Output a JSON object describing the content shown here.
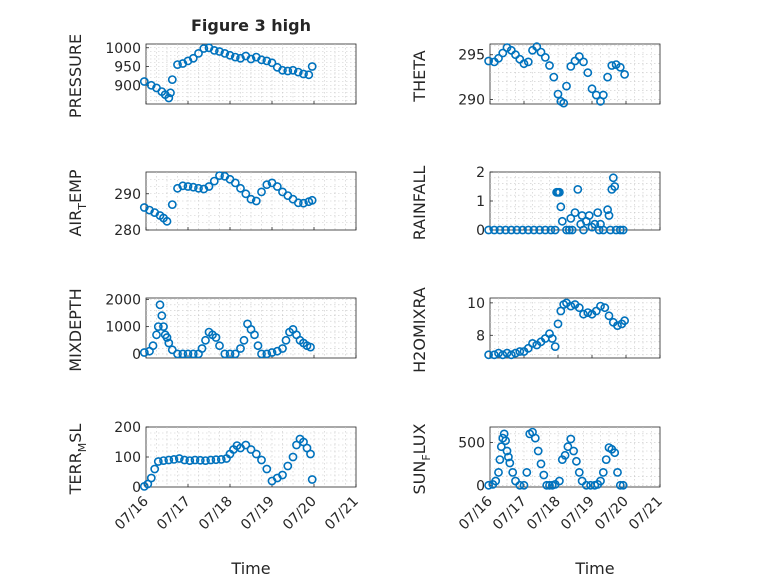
{
  "figure": {
    "title": "Figure 3 high",
    "xlabel": "Time",
    "x_ticks": [
      "07/16",
      "07/17",
      "07/18",
      "07/19",
      "07/20",
      "07/21"
    ]
  },
  "chart_data": [
    {
      "type": "scatter",
      "ylabel": "PRESSURE",
      "grid": true,
      "xlim": [
        "07/16",
        "07/21"
      ],
      "ylim": [
        850,
        1010
      ],
      "yticks": [
        900,
        950,
        1000
      ],
      "x": [
        "07/15 23:00",
        "07/16 03:00",
        "07/16 06:00",
        "07/16 09:00",
        "07/16 11:00",
        "07/16 13:00",
        "07/16 14:00",
        "07/16 15:00",
        "07/16 18:00",
        "07/16 21:00",
        "07/17 00:00",
        "07/17 03:00",
        "07/17 06:00",
        "07/17 09:00",
        "07/17 12:00",
        "07/17 15:00",
        "07/17 18:00",
        "07/17 21:00",
        "07/18 00:00",
        "07/18 03:00",
        "07/18 06:00",
        "07/18 09:00",
        "07/18 12:00",
        "07/18 15:00",
        "07/18 18:00",
        "07/18 21:00",
        "07/19 00:00",
        "07/19 03:00",
        "07/19 06:00",
        "07/19 09:00",
        "07/19 12:00",
        "07/19 15:00",
        "07/19 18:00",
        "07/19 21:00",
        "07/19 23:00"
      ],
      "y": [
        910,
        900,
        893,
        883,
        875,
        866,
        880,
        915,
        955,
        958,
        965,
        972,
        985,
        998,
        1000,
        993,
        990,
        985,
        980,
        975,
        972,
        978,
        970,
        975,
        968,
        965,
        960,
        948,
        940,
        938,
        940,
        935,
        930,
        928,
        950
      ]
    },
    {
      "type": "scatter",
      "ylabel": "THETA",
      "grid": true,
      "xlim": [
        "07/16",
        "07/21"
      ],
      "ylim": [
        289.5,
        296.2
      ],
      "yticks": [
        290,
        295
      ],
      "x": [
        "07/15 23:00",
        "07/16 03:00",
        "07/16 06:00",
        "07/16 09:00",
        "07/16 12:00",
        "07/16 15:00",
        "07/16 18:00",
        "07/16 21:00",
        "07/17 00:00",
        "07/17 03:00",
        "07/17 06:00",
        "07/17 09:00",
        "07/17 12:00",
        "07/17 15:00",
        "07/17 18:00",
        "07/17 21:00",
        "07/18 00:00",
        "07/18 02:00",
        "07/18 04:00",
        "07/18 06:00",
        "07/18 09:00",
        "07/18 12:00",
        "07/18 15:00",
        "07/18 18:00",
        "07/18 21:00",
        "07/19 00:00",
        "07/19 03:00",
        "07/19 06:00",
        "07/19 08:00",
        "07/19 11:00",
        "07/19 14:00",
        "07/19 17:00",
        "07/19 20:00",
        "07/19 23:00"
      ],
      "y": [
        294.3,
        294.2,
        294.6,
        295.2,
        295.8,
        295.5,
        295.0,
        294.5,
        294.0,
        294.2,
        295.5,
        295.9,
        295.3,
        294.7,
        293.8,
        292.5,
        290.6,
        289.8,
        289.6,
        291.5,
        293.7,
        294.3,
        294.8,
        294.2,
        293.0,
        291.2,
        290.5,
        289.8,
        290.5,
        292.5,
        293.8,
        293.9,
        293.6,
        292.8
      ]
    },
    {
      "type": "scatter",
      "ylabel": "AIR_TEMP",
      "grid": true,
      "xlim": [
        "07/16",
        "07/21"
      ],
      "ylim": [
        280,
        296
      ],
      "yticks": [
        280,
        290
      ],
      "x": [
        "07/15 23:00",
        "07/16 02:00",
        "07/16 05:00",
        "07/16 08:00",
        "07/16 10:00",
        "07/16 12:00",
        "07/16 15:00",
        "07/16 18:00",
        "07/16 21:00",
        "07/17 00:00",
        "07/17 03:00",
        "07/17 06:00",
        "07/17 09:00",
        "07/17 12:00",
        "07/17 15:00",
        "07/17 18:00",
        "07/17 21:00",
        "07/18 00:00",
        "07/18 03:00",
        "07/18 06:00",
        "07/18 09:00",
        "07/18 12:00",
        "07/18 15:00",
        "07/18 18:00",
        "07/18 21:00",
        "07/19 00:00",
        "07/19 03:00",
        "07/19 06:00",
        "07/19 09:00",
        "07/19 12:00",
        "07/19 15:00",
        "07/19 18:00",
        "07/19 21:00",
        "07/19 23:00"
      ],
      "y": [
        286.2,
        285.5,
        284.8,
        284.0,
        283.3,
        282.4,
        287.0,
        291.5,
        292.2,
        292.0,
        291.8,
        291.5,
        291.3,
        292.0,
        293.5,
        295.0,
        294.8,
        294.0,
        293.0,
        291.5,
        290.0,
        288.5,
        288.0,
        290.5,
        292.5,
        293.0,
        292.0,
        290.5,
        289.5,
        288.5,
        287.5,
        287.4,
        287.8,
        288.2
      ]
    },
    {
      "type": "scatter",
      "ylabel": "RAINFALL",
      "grid": true,
      "xlim": [
        "07/16",
        "07/21"
      ],
      "ylim": [
        0,
        2
      ],
      "yticks": [
        0,
        1,
        2
      ],
      "x": [
        "07/15 23:00",
        "07/16 03:00",
        "07/16 07:00",
        "07/16 11:00",
        "07/16 15:00",
        "07/16 19:00",
        "07/16 23:00",
        "07/17 03:00",
        "07/17 07:00",
        "07/17 11:00",
        "07/17 15:00",
        "07/17 19:00",
        "07/17 22:00",
        "07/17 23:00",
        "07/18 00:00",
        "07/18 01:00",
        "07/18 02:00",
        "07/18 03:00",
        "07/18 06:00",
        "07/18 08:00",
        "07/18 09:00",
        "07/18 10:00",
        "07/18 12:00",
        "07/18 14:00",
        "07/18 16:00",
        "07/18 17:00",
        "07/18 18:00",
        "07/18 20:00",
        "07/18 22:00",
        "07/19 00:00",
        "07/19 02:00",
        "07/19 04:00",
        "07/19 05:00",
        "07/19 06:00",
        "07/19 08:00",
        "07/19 11:00",
        "07/19 12:00",
        "07/19 13:00",
        "07/19 14:00",
        "07/19 15:00",
        "07/19 16:00",
        "07/19 17:00",
        "07/19 20:00",
        "07/19 22:00"
      ],
      "y": [
        0,
        0,
        0,
        0,
        0,
        0,
        0,
        0,
        0,
        0,
        0,
        0,
        0,
        1.3,
        1.3,
        1.3,
        0.8,
        0.3,
        0,
        0,
        0.4,
        0,
        0.6,
        1.4,
        0.2,
        0.5,
        0,
        0.3,
        0.5,
        0.1,
        0.2,
        0.6,
        0,
        0.2,
        0,
        0.7,
        0.5,
        0,
        1.4,
        1.8,
        1.5,
        0,
        0,
        0
      ]
    },
    {
      "type": "scatter",
      "ylabel": "MIXDEPTH",
      "grid": true,
      "xlim": [
        "07/16",
        "07/21"
      ],
      "ylim": [
        -150,
        2050
      ],
      "yticks": [
        0,
        1000,
        2000
      ],
      "x": [
        "07/15 23:00",
        "07/16 02:00",
        "07/16 04:00",
        "07/16 06:00",
        "07/16 07:00",
        "07/16 08:00",
        "07/16 09:00",
        "07/16 10:00",
        "07/16 11:00",
        "07/16 12:00",
        "07/16 13:00",
        "07/16 15:00",
        "07/16 18:00",
        "07/16 21:00",
        "07/17 00:00",
        "07/17 03:00",
        "07/17 06:00",
        "07/17 08:00",
        "07/17 10:00",
        "07/17 12:00",
        "07/17 14:00",
        "07/17 16:00",
        "07/17 18:00",
        "07/17 21:00",
        "07/18 00:00",
        "07/18 03:00",
        "07/18 06:00",
        "07/18 08:00",
        "07/18 10:00",
        "07/18 12:00",
        "07/18 14:00",
        "07/18 16:00",
        "07/18 18:00",
        "07/18 21:00",
        "07/19 00:00",
        "07/19 03:00",
        "07/19 06:00",
        "07/19 08:00",
        "07/19 10:00",
        "07/19 12:00",
        "07/19 14:00",
        "07/19 16:00",
        "07/19 18:00",
        "07/19 20:00",
        "07/19 22:00"
      ],
      "y": [
        50,
        100,
        300,
        700,
        1000,
        1800,
        1400,
        1000,
        700,
        600,
        400,
        150,
        0,
        0,
        0,
        0,
        0,
        200,
        500,
        800,
        700,
        600,
        300,
        0,
        0,
        0,
        200,
        500,
        1100,
        900,
        700,
        300,
        0,
        0,
        50,
        100,
        200,
        500,
        800,
        900,
        700,
        500,
        400,
        300,
        250
      ]
    },
    {
      "type": "scatter",
      "ylabel": "H2OMIXRA",
      "grid": true,
      "xlim": [
        "07/16",
        "07/21"
      ],
      "ylim": [
        6.6,
        10.3
      ],
      "yticks": [
        8,
        10
      ],
      "x": [
        "07/15 23:00",
        "07/16 03:00",
        "07/16 06:00",
        "07/16 09:00",
        "07/16 12:00",
        "07/16 15:00",
        "07/16 18:00",
        "07/16 21:00",
        "07/17 00:00",
        "07/17 03:00",
        "07/17 06:00",
        "07/17 09:00",
        "07/17 12:00",
        "07/17 15:00",
        "07/17 18:00",
        "07/17 20:00",
        "07/17 22:00",
        "07/18 00:00",
        "07/18 02:00",
        "07/18 04:00",
        "07/18 06:00",
        "07/18 09:00",
        "07/18 12:00",
        "07/18 15:00",
        "07/18 18:00",
        "07/18 21:00",
        "07/19 00:00",
        "07/19 03:00",
        "07/19 06:00",
        "07/19 09:00",
        "07/19 12:00",
        "07/19 15:00",
        "07/19 18:00",
        "07/19 21:00",
        "07/19 23:00"
      ],
      "y": [
        6.8,
        6.8,
        6.9,
        6.8,
        6.9,
        6.8,
        6.9,
        7.0,
        7.0,
        7.2,
        7.5,
        7.4,
        7.6,
        7.8,
        8.1,
        7.8,
        7.3,
        8.7,
        9.5,
        9.9,
        10.0,
        9.8,
        9.9,
        9.7,
        9.3,
        9.4,
        9.3,
        9.5,
        9.8,
        9.7,
        9.2,
        8.8,
        8.6,
        8.7,
        8.9
      ]
    },
    {
      "type": "scatter",
      "ylabel": "TERR_MSL",
      "grid": true,
      "xlim": [
        "07/16",
        "07/21"
      ],
      "ylim": [
        0,
        200
      ],
      "yticks": [
        0,
        100,
        200
      ],
      "x": [
        "07/15 23:00",
        "07/16 01:00",
        "07/16 03:00",
        "07/16 05:00",
        "07/16 07:00",
        "07/16 10:00",
        "07/16 13:00",
        "07/16 16:00",
        "07/16 19:00",
        "07/16 22:00",
        "07/17 01:00",
        "07/17 04:00",
        "07/17 07:00",
        "07/17 10:00",
        "07/17 13:00",
        "07/17 16:00",
        "07/17 19:00",
        "07/17 22:00",
        "07/18 00:00",
        "07/18 02:00",
        "07/18 04:00",
        "07/18 06:00",
        "07/18 09:00",
        "07/18 12:00",
        "07/18 15:00",
        "07/18 18:00",
        "07/18 21:00",
        "07/19 00:00",
        "07/19 03:00",
        "07/19 06:00",
        "07/19 09:00",
        "07/19 12:00",
        "07/19 14:00",
        "07/19 16:00",
        "07/19 18:00",
        "07/19 20:00",
        "07/19 22:00",
        "07/19 23:00"
      ],
      "y": [
        2,
        10,
        30,
        60,
        85,
        88,
        90,
        92,
        95,
        90,
        88,
        90,
        89,
        88,
        90,
        91,
        92,
        95,
        110,
        125,
        138,
        130,
        140,
        125,
        110,
        90,
        60,
        20,
        30,
        40,
        70,
        100,
        140,
        160,
        150,
        130,
        110,
        25
      ]
    },
    {
      "type": "scatter",
      "ylabel": "SUN_FLUX",
      "grid": true,
      "xlim": [
        "07/16",
        "07/21"
      ],
      "ylim": [
        -20,
        680
      ],
      "yticks": [
        0,
        500
      ],
      "x": [
        "07/15 23:00",
        "07/16 02:00",
        "07/16 04:00",
        "07/16 06:00",
        "07/16 07:00",
        "07/16 08:00",
        "07/16 09:00",
        "07/16 10:00",
        "07/16 11:00",
        "07/16 12:00",
        "07/16 13:00",
        "07/16 14:00",
        "07/16 16:00",
        "07/16 18:00",
        "07/16 21:00",
        "07/17 00:00",
        "07/17 02:00",
        "07/17 04:00",
        "07/17 06:00",
        "07/17 08:00",
        "07/17 10:00",
        "07/17 12:00",
        "07/17 14:00",
        "07/17 16:00",
        "07/17 18:00",
        "07/17 20:00",
        "07/17 22:00",
        "07/18 01:00",
        "07/18 03:00",
        "07/18 05:00",
        "07/18 07:00",
        "07/18 09:00",
        "07/18 11:00",
        "07/18 13:00",
        "07/18 15:00",
        "07/18 17:00",
        "07/18 20:00",
        "07/18 23:00",
        "07/19 02:00",
        "07/19 04:00",
        "07/19 06:00",
        "07/19 08:00",
        "07/19 10:00",
        "07/19 12:00",
        "07/19 14:00",
        "07/19 16:00",
        "07/19 18:00",
        "07/19 20:00",
        "07/19 22:00"
      ],
      "y": [
        0,
        10,
        50,
        150,
        300,
        450,
        550,
        600,
        520,
        400,
        330,
        260,
        150,
        50,
        0,
        0,
        150,
        600,
        620,
        550,
        400,
        250,
        120,
        0,
        0,
        0,
        10,
        50,
        300,
        350,
        450,
        540,
        400,
        280,
        150,
        50,
        0,
        0,
        0,
        10,
        50,
        150,
        300,
        440,
        420,
        380,
        150,
        0,
        0
      ]
    }
  ]
}
